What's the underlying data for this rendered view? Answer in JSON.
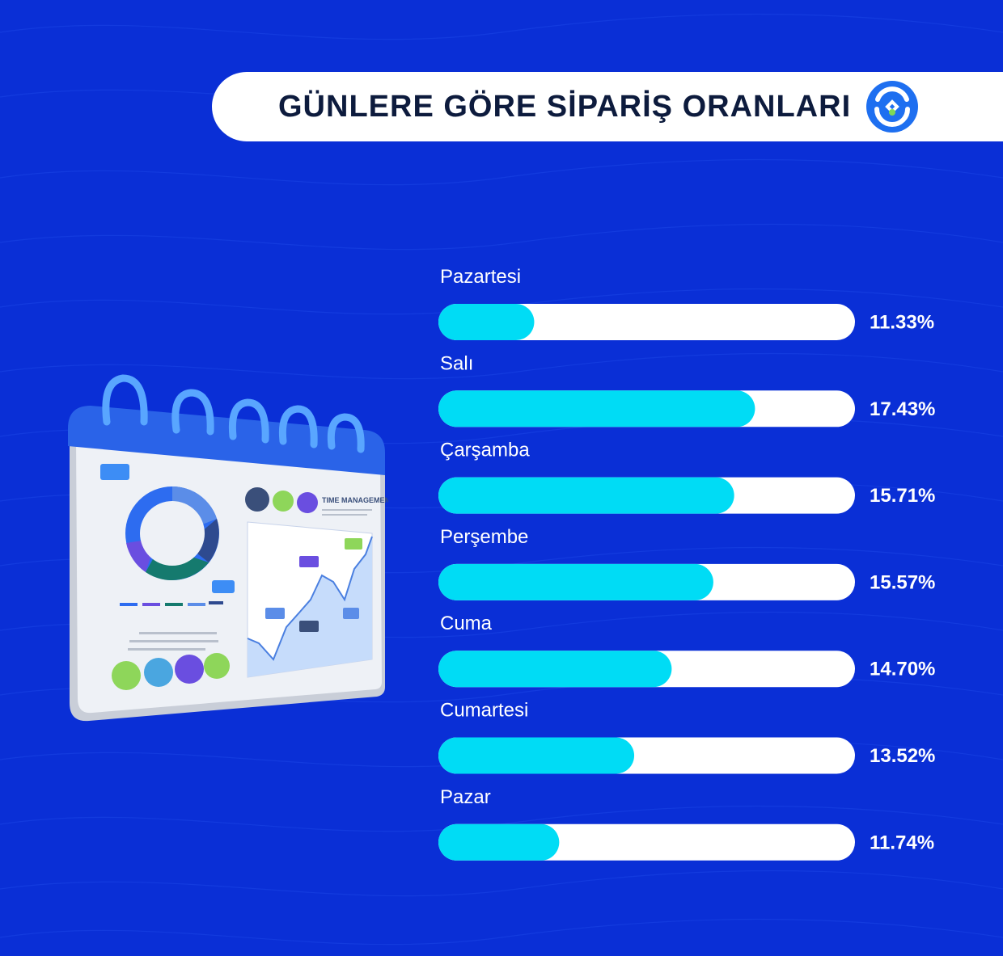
{
  "title": "GÜNLERE GÖRE SİPARİŞ ORANLARI",
  "logo_icon": "brand-logo-icon",
  "illustration": {
    "icon": "calendar-dashboard-illustration",
    "heading": "TIME MANAGEMENT"
  },
  "colors": {
    "background": "#0a2fd6",
    "bar_fill": "#00dcf5",
    "bar_track": "#ffffff",
    "title_text": "#0d1b3d"
  },
  "chart_data": {
    "type": "bar",
    "orientation": "horizontal",
    "title": "GÜNLERE GÖRE SİPARİŞ ORANLARI",
    "categories": [
      "Pazartesi",
      "Salı",
      "Çarşamba",
      "Perşembe",
      "Cuma",
      "Cumartesi",
      "Pazar"
    ],
    "values": [
      11.33,
      17.43,
      15.71,
      15.57,
      14.7,
      13.52,
      11.74
    ],
    "value_labels": [
      "11.33%",
      "17.43%",
      "15.71%",
      "15.57%",
      "14.70%",
      "13.52%",
      "11.74%"
    ],
    "fill_fractions": [
      0.23,
      0.76,
      0.71,
      0.66,
      0.56,
      0.47,
      0.29
    ],
    "xlabel": "",
    "ylabel": "",
    "unit": "%"
  }
}
